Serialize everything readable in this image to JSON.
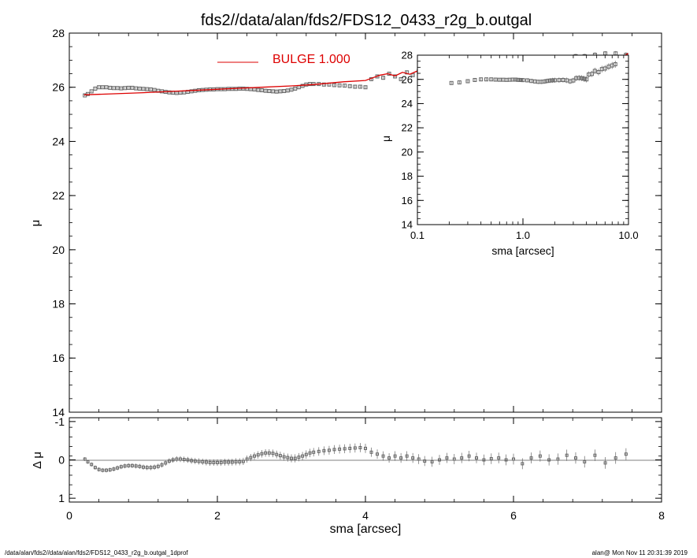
{
  "title": "fds2//data/alan/fds2/FDS12_0433_r2g_b.outgal",
  "footer": {
    "left": "/data/alan/fds2//data/alan/fds2/FDS12_0433_r2g_b.outgal_1dprof",
    "right": "alan@  Mon Nov 11 20:31:39 2019"
  },
  "colors": {
    "model": "#dd0000",
    "data": "#666666",
    "axes": "#000000"
  },
  "chart_data": [
    {
      "id": "main",
      "type": "scatter",
      "xlabel": "sma [arcsec]",
      "ylabel": "μ",
      "xlim": [
        0,
        8
      ],
      "ylim": [
        28,
        14
      ],
      "xticks": [
        "0",
        "2",
        "4",
        "6",
        "8"
      ],
      "yticks": [
        "14",
        "16",
        "18",
        "20",
        "22",
        "24",
        "26",
        "28"
      ],
      "legend": {
        "label": "BULGE  1.000",
        "placement": "top-center"
      },
      "series": [
        {
          "name": "data",
          "x": [
            0.21,
            0.25,
            0.3,
            0.35,
            0.4,
            0.45,
            0.5,
            0.55,
            0.6,
            0.65,
            0.7,
            0.75,
            0.8,
            0.85,
            0.9,
            0.95,
            1.0,
            1.05,
            1.1,
            1.15,
            1.2,
            1.25,
            1.3,
            1.35,
            1.4,
            1.45,
            1.5,
            1.55,
            1.6,
            1.65,
            1.7,
            1.75,
            1.8,
            1.85,
            1.9,
            1.95,
            2.0,
            2.05,
            2.1,
            2.15,
            2.2,
            2.25,
            2.3,
            2.35,
            2.4,
            2.45,
            2.5,
            2.55,
            2.6,
            2.65,
            2.7,
            2.75,
            2.8,
            2.85,
            2.9,
            2.95,
            3.0,
            3.05,
            3.1,
            3.15,
            3.2,
            3.25,
            3.3,
            3.37,
            3.44,
            3.51,
            3.58,
            3.65,
            3.72,
            3.79,
            3.86,
            3.93,
            4.0,
            4.08,
            4.16,
            4.24,
            4.32,
            4.4,
            4.48,
            4.56,
            4.64,
            4.72,
            4.8,
            4.9,
            5.0,
            5.1,
            5.2,
            5.3,
            5.4,
            5.5,
            5.6,
            5.7,
            5.8,
            5.9,
            6.0,
            6.12,
            6.24,
            6.36,
            6.48,
            6.6,
            6.72,
            6.84,
            6.96,
            7.1,
            7.24,
            7.38,
            7.52
          ],
          "y": [
            25.7,
            25.75,
            25.85,
            25.95,
            26.0,
            26.0,
            26.0,
            25.98,
            25.97,
            25.97,
            25.96,
            25.97,
            25.98,
            25.98,
            25.96,
            25.95,
            25.94,
            25.93,
            25.92,
            25.9,
            25.87,
            25.85,
            25.83,
            25.81,
            25.8,
            25.79,
            25.8,
            25.81,
            25.83,
            25.85,
            25.87,
            25.89,
            25.9,
            25.91,
            25.92,
            25.92,
            25.93,
            25.93,
            25.93,
            25.94,
            25.94,
            25.94,
            25.95,
            25.95,
            25.94,
            25.93,
            25.92,
            25.9,
            25.89,
            25.87,
            25.86,
            25.85,
            25.84,
            25.85,
            25.86,
            25.88,
            25.91,
            25.95,
            26.0,
            26.05,
            26.1,
            26.12,
            26.12,
            26.12,
            26.1,
            26.1,
            26.08,
            26.07,
            26.06,
            26.04,
            26.02,
            26.02,
            26.0,
            26.3,
            26.4,
            26.35,
            26.5,
            26.4,
            26.3,
            26.55,
            26.45,
            26.6,
            26.7,
            26.7,
            26.65,
            26.55,
            26.55,
            26.75,
            26.6,
            26.8,
            26.75,
            26.85,
            26.85,
            26.8,
            26.9,
            26.9,
            26.95,
            27.0,
            27.05,
            27.1,
            27.1,
            27.15,
            27.15,
            27.2,
            27.25,
            27.25,
            27.2
          ]
        },
        {
          "name": "model",
          "x": [
            0.2,
            0.6,
            1.0,
            1.4,
            1.8,
            2.2,
            2.6,
            3.0,
            3.3,
            3.7,
            4.0,
            4.1,
            4.2,
            4.3,
            4.4,
            4.5,
            4.6,
            4.7,
            4.85,
            5.0,
            5.15,
            5.3,
            5.45,
            5.6,
            5.75,
            5.9,
            6.05,
            6.2,
            6.3,
            6.5,
            6.7,
            6.85,
            7.0,
            7.15,
            7.3,
            7.45,
            7.55
          ],
          "y": [
            25.72,
            25.76,
            25.8,
            25.85,
            25.9,
            25.95,
            26.0,
            26.05,
            26.1,
            26.2,
            26.25,
            26.35,
            26.45,
            26.5,
            26.42,
            26.55,
            26.48,
            26.6,
            26.55,
            26.6,
            26.65,
            26.6,
            26.7,
            26.7,
            26.75,
            26.85,
            26.8,
            26.95,
            26.8,
            26.95,
            26.9,
            27.0,
            27.05,
            27.0,
            27.15,
            27.1,
            27.25
          ]
        }
      ]
    },
    {
      "id": "residual",
      "type": "scatter",
      "xlabel": "sma [arcsec]",
      "ylabel": "Δ μ",
      "xlim": [
        0,
        8
      ],
      "ylim": [
        -1.1,
        1.1
      ],
      "xticks": [
        "0",
        "2",
        "4",
        "6",
        "8"
      ],
      "yticks": [
        "1",
        "0",
        "-1"
      ],
      "series": [
        {
          "name": "residual",
          "x": [
            0.21,
            0.25,
            0.3,
            0.35,
            0.4,
            0.45,
            0.5,
            0.55,
            0.6,
            0.65,
            0.7,
            0.75,
            0.8,
            0.85,
            0.9,
            0.95,
            1.0,
            1.05,
            1.1,
            1.15,
            1.2,
            1.25,
            1.3,
            1.35,
            1.4,
            1.45,
            1.5,
            1.55,
            1.6,
            1.65,
            1.7,
            1.75,
            1.8,
            1.85,
            1.9,
            1.95,
            2.0,
            2.05,
            2.1,
            2.15,
            2.2,
            2.25,
            2.3,
            2.35,
            2.4,
            2.45,
            2.5,
            2.55,
            2.6,
            2.65,
            2.7,
            2.75,
            2.8,
            2.85,
            2.9,
            2.95,
            3.0,
            3.05,
            3.1,
            3.15,
            3.2,
            3.25,
            3.3,
            3.37,
            3.44,
            3.51,
            3.58,
            3.65,
            3.72,
            3.79,
            3.86,
            3.93,
            4.0,
            4.08,
            4.16,
            4.24,
            4.32,
            4.4,
            4.48,
            4.56,
            4.64,
            4.72,
            4.8,
            4.9,
            5.0,
            5.1,
            5.2,
            5.3,
            5.4,
            5.5,
            5.6,
            5.7,
            5.8,
            5.9,
            6.0,
            6.12,
            6.24,
            6.36,
            6.48,
            6.6,
            6.72,
            6.84,
            6.96,
            7.1,
            7.24,
            7.38,
            7.52
          ],
          "y": [
            -0.02,
            0.05,
            0.12,
            0.2,
            0.25,
            0.27,
            0.27,
            0.26,
            0.24,
            0.21,
            0.18,
            0.16,
            0.15,
            0.15,
            0.16,
            0.17,
            0.19,
            0.2,
            0.2,
            0.19,
            0.17,
            0.13,
            0.08,
            0.03,
            0.0,
            -0.02,
            -0.02,
            -0.01,
            0.0,
            0.02,
            0.03,
            0.04,
            0.05,
            0.06,
            0.07,
            0.07,
            0.07,
            0.07,
            0.06,
            0.06,
            0.06,
            0.05,
            0.05,
            0.04,
            -0.02,
            -0.06,
            -0.1,
            -0.13,
            -0.16,
            -0.18,
            -0.18,
            -0.17,
            -0.14,
            -0.11,
            -0.08,
            -0.06,
            -0.04,
            -0.04,
            -0.07,
            -0.1,
            -0.14,
            -0.18,
            -0.2,
            -0.22,
            -0.24,
            -0.25,
            -0.27,
            -0.28,
            -0.29,
            -0.3,
            -0.31,
            -0.32,
            -0.3,
            -0.2,
            -0.15,
            -0.1,
            -0.05,
            -0.1,
            -0.05,
            -0.1,
            -0.05,
            -0.02,
            0.03,
            0.05,
            0.0,
            -0.05,
            -0.02,
            -0.05,
            -0.1,
            -0.05,
            0.0,
            -0.03,
            -0.05,
            0.0,
            -0.02,
            0.1,
            -0.05,
            -0.1,
            0.0,
            -0.02,
            -0.12,
            -0.05,
            0.05,
            -0.12,
            0.08,
            -0.05,
            -0.15
          ]
        }
      ]
    },
    {
      "id": "inset",
      "type": "scatter",
      "xlabel": "sma [arcsec]",
      "ylabel": "μ",
      "xscale": "log",
      "xlim": [
        0.1,
        10.0
      ],
      "ylim": [
        28,
        14
      ],
      "xticks": [
        "0.1",
        "1.0",
        "10.0"
      ],
      "yticks": [
        "14",
        "16",
        "18",
        "20",
        "22",
        "24",
        "26",
        "28"
      ],
      "series": [
        {
          "name": "data",
          "x": [
            0.21,
            0.25,
            0.3,
            0.35,
            0.4,
            0.45,
            0.5,
            0.55,
            0.6,
            0.65,
            0.7,
            0.75,
            0.8,
            0.85,
            0.9,
            0.95,
            1.0,
            1.1,
            1.2,
            1.3,
            1.4,
            1.5,
            1.6,
            1.7,
            1.8,
            1.9,
            2.0,
            2.2,
            2.4,
            2.6,
            2.8,
            3.0,
            3.2,
            3.4,
            3.6,
            3.8,
            4.0,
            4.2,
            4.5,
            4.8,
            5.2,
            5.6,
            6.0,
            6.5,
            7.0,
            7.5
          ],
          "y": [
            25.7,
            25.75,
            25.85,
            25.95,
            26.0,
            26.0,
            26.0,
            25.98,
            25.97,
            25.97,
            25.96,
            25.97,
            25.98,
            25.98,
            25.96,
            25.95,
            25.94,
            25.92,
            25.87,
            25.83,
            25.8,
            25.8,
            25.83,
            25.87,
            25.9,
            25.92,
            25.93,
            25.94,
            25.95,
            25.92,
            25.84,
            25.91,
            26.1,
            26.12,
            26.1,
            26.05,
            26.0,
            26.4,
            26.45,
            26.7,
            26.6,
            26.85,
            26.9,
            27.05,
            27.15,
            27.25
          ]
        }
      ]
    }
  ]
}
